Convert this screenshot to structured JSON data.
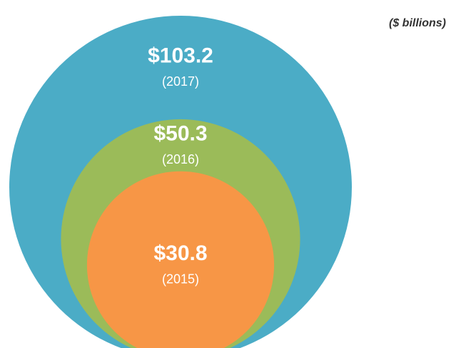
{
  "chart_data": {
    "type": "nested-bubble",
    "annotation": "($ billions)",
    "categories": [
      "(2017)",
      "(2016)",
      "(2015)"
    ],
    "values": [
      103.2,
      50.3,
      30.8
    ],
    "value_labels": [
      "$103.2",
      "$50.3",
      "$30.8"
    ],
    "colors": [
      "#4bacc6",
      "#9bbb59",
      "#f79646"
    ]
  }
}
